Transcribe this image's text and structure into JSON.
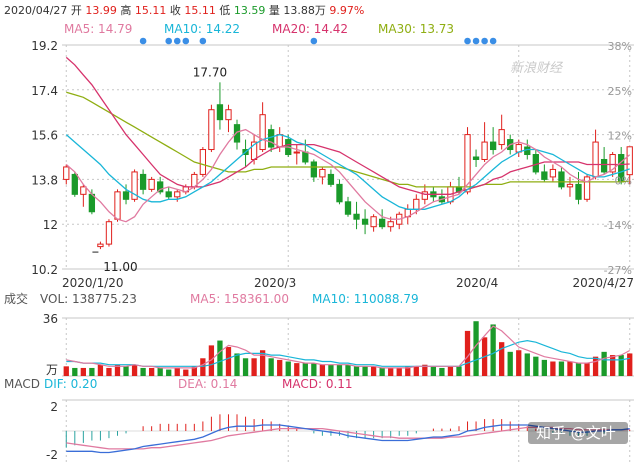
{
  "header": {
    "date": "2020/04/27",
    "items": [
      {
        "label": "开",
        "value": "13.99",
        "color": "#e0201c"
      },
      {
        "label": "高",
        "value": "15.11",
        "color": "#e0201c"
      },
      {
        "label": "收",
        "value": "15.11",
        "color": "#e0201c"
      },
      {
        "label": "低",
        "value": "13.59",
        "color": "#1a9a2a"
      },
      {
        "label": "量",
        "value": "13.88万",
        "color": "#333333"
      },
      {
        "label": "",
        "value": "9.97%",
        "color": "#e0201c"
      }
    ]
  },
  "legend": [
    {
      "text": "MA5: 14.79",
      "color": "#e07aa0"
    },
    {
      "text": "MA10: 14.22",
      "color": "#19b6d8"
    },
    {
      "text": "MA20: 14.42",
      "color": "#d6336c"
    },
    {
      "text": "MA30: 13.73",
      "color": "#8fae12"
    }
  ],
  "watermark": "新浪财经",
  "credit": "知乎 @文叶",
  "colors": {
    "up": "#e0201c",
    "down": "#1a9a2a",
    "grid": "#c7c7c7",
    "event": "#3a8ee6"
  },
  "chart_data": [
    {
      "type": "candlestick",
      "ylim": [
        10.2,
        19.2
      ],
      "yticks": [
        "19.2",
        "17.4",
        "15.6",
        "13.8",
        "12",
        "10.2"
      ],
      "pct_ticks": [
        "38%",
        "25%",
        "12%",
        "0%",
        "-14%",
        "-27%"
      ],
      "x_labels": [
        "2020/1/20",
        "2020/3",
        "2020/4",
        "2020/4/27"
      ],
      "annotations": [
        {
          "text": "17.70"
        },
        {
          "text": "11.00"
        }
      ],
      "ohlc": [
        [
          13.8,
          14.4,
          13.6,
          14.3
        ],
        [
          14.0,
          14.1,
          13.1,
          13.2
        ],
        [
          13.2,
          13.6,
          12.7,
          13.5
        ],
        [
          13.2,
          13.4,
          12.4,
          12.5
        ],
        [
          11.1,
          11.3,
          11.0,
          11.2
        ],
        [
          11.2,
          12.2,
          11.1,
          12.1
        ],
        [
          12.2,
          13.4,
          12.1,
          13.3
        ],
        [
          13.3,
          13.6,
          12.8,
          13.0
        ],
        [
          13.0,
          14.2,
          12.9,
          14.1
        ],
        [
          14.0,
          14.2,
          13.2,
          13.4
        ],
        [
          13.4,
          13.9,
          13.3,
          13.8
        ],
        [
          13.7,
          13.9,
          13.2,
          13.3
        ],
        [
          13.3,
          13.5,
          13.0,
          13.1
        ],
        [
          13.1,
          13.4,
          12.9,
          13.3
        ],
        [
          13.3,
          13.6,
          13.2,
          13.5
        ],
        [
          13.5,
          14.1,
          13.4,
          14.0
        ],
        [
          14.0,
          15.1,
          13.9,
          15.0
        ],
        [
          15.0,
          16.8,
          14.9,
          16.6
        ],
        [
          16.8,
          17.7,
          15.8,
          16.2
        ],
        [
          16.2,
          16.8,
          15.7,
          16.6
        ],
        [
          16.0,
          16.2,
          15.0,
          15.3
        ],
        [
          15.0,
          15.4,
          14.3,
          14.8
        ],
        [
          14.6,
          15.6,
          14.4,
          15.3
        ],
        [
          15.0,
          16.9,
          14.9,
          16.4
        ],
        [
          15.8,
          16.0,
          14.9,
          15.1
        ],
        [
          15.1,
          15.9,
          14.9,
          15.6
        ],
        [
          15.4,
          15.6,
          14.7,
          14.8
        ],
        [
          14.9,
          15.2,
          14.4,
          14.9
        ],
        [
          14.9,
          15.4,
          14.4,
          14.5
        ],
        [
          14.5,
          14.6,
          13.7,
          13.9
        ],
        [
          13.9,
          14.3,
          13.6,
          14.2
        ],
        [
          14.0,
          14.2,
          13.5,
          13.6
        ],
        [
          13.6,
          13.8,
          12.8,
          12.9
        ],
        [
          12.9,
          13.1,
          12.3,
          12.4
        ],
        [
          12.4,
          12.9,
          11.8,
          12.2
        ],
        [
          12.2,
          12.6,
          11.6,
          12.0
        ],
        [
          11.9,
          12.4,
          11.7,
          12.3
        ],
        [
          12.2,
          12.6,
          11.8,
          11.9
        ],
        [
          11.9,
          12.3,
          11.7,
          12.1
        ],
        [
          12.0,
          12.5,
          11.8,
          12.4
        ],
        [
          12.3,
          12.8,
          12.0,
          12.6
        ],
        [
          12.6,
          13.2,
          12.4,
          13.0
        ],
        [
          13.0,
          13.6,
          12.8,
          13.3
        ],
        [
          13.3,
          13.5,
          12.9,
          13.1
        ],
        [
          13.1,
          13.4,
          12.8,
          12.9
        ],
        [
          12.9,
          13.7,
          12.8,
          13.5
        ],
        [
          13.5,
          13.9,
          13.2,
          13.3
        ],
        [
          13.3,
          15.9,
          13.2,
          15.6
        ],
        [
          14.7,
          15.0,
          14.3,
          14.6
        ],
        [
          14.6,
          16.1,
          14.5,
          15.3
        ],
        [
          15.3,
          15.9,
          14.8,
          15.0
        ],
        [
          15.2,
          16.4,
          15.0,
          15.8
        ],
        [
          15.4,
          15.6,
          14.8,
          15.0
        ],
        [
          14.9,
          15.4,
          14.7,
          15.2
        ],
        [
          15.1,
          15.4,
          14.6,
          14.8
        ],
        [
          14.8,
          15.0,
          14.0,
          14.1
        ],
        [
          14.1,
          14.4,
          13.7,
          13.8
        ],
        [
          13.9,
          14.4,
          13.7,
          14.2
        ],
        [
          14.1,
          14.3,
          13.4,
          13.5
        ],
        [
          13.5,
          13.9,
          13.1,
          13.6
        ],
        [
          13.6,
          14.1,
          12.8,
          13.0
        ],
        [
          13.0,
          14.0,
          12.9,
          13.9
        ],
        [
          13.9,
          15.8,
          13.8,
          15.3
        ],
        [
          14.6,
          15.1,
          14.0,
          14.1
        ],
        [
          14.1,
          14.9,
          13.9,
          14.8
        ],
        [
          14.8,
          15.1,
          13.6,
          13.7
        ],
        [
          13.99,
          15.11,
          13.59,
          15.11
        ]
      ],
      "ma5": [
        14.4,
        14.1,
        13.6,
        13.2,
        12.9,
        12.5,
        12.2,
        12.1,
        12.3,
        12.8,
        13.1,
        13.4,
        13.5,
        13.4,
        13.3,
        13.5,
        13.8,
        14.2,
        14.8,
        15.3,
        15.7,
        15.8,
        15.6,
        15.4,
        15.3,
        15.1,
        15.1,
        15.0,
        14.9,
        14.8,
        14.6,
        14.4,
        14.1,
        13.7,
        13.3,
        12.9,
        12.6,
        12.3,
        12.2,
        12.2,
        12.3,
        12.5,
        12.7,
        12.9,
        13.0,
        13.1,
        13.2,
        13.6,
        14.0,
        14.4,
        14.7,
        14.9,
        15.2,
        15.3,
        15.2,
        15.0,
        14.7,
        14.5,
        14.3,
        14.0,
        13.8,
        13.7,
        13.9,
        14.0,
        14.2,
        14.5,
        14.79
      ],
      "ma10": [
        15.6,
        15.3,
        15.0,
        14.7,
        14.4,
        14.0,
        13.7,
        13.4,
        13.2,
        13.0,
        12.9,
        12.9,
        13.0,
        13.0,
        13.1,
        13.3,
        13.5,
        13.7,
        14.0,
        14.3,
        14.6,
        14.9,
        15.2,
        15.4,
        15.5,
        15.6,
        15.5,
        15.3,
        15.2,
        15.0,
        14.8,
        14.6,
        14.4,
        14.2,
        14.0,
        13.7,
        13.4,
        13.1,
        12.9,
        12.7,
        12.6,
        12.6,
        12.6,
        12.7,
        12.8,
        12.9,
        13.1,
        13.4,
        13.6,
        13.9,
        14.2,
        14.5,
        14.7,
        14.9,
        15.0,
        15.0,
        14.9,
        14.8,
        14.6,
        14.4,
        14.2,
        14.0,
        13.9,
        13.9,
        14.0,
        14.1,
        14.22
      ],
      "ma20": [
        18.7,
        18.4,
        18.0,
        17.6,
        17.1,
        16.6,
        16.1,
        15.6,
        15.2,
        14.8,
        14.4,
        14.0,
        13.8,
        13.6,
        13.5,
        13.5,
        13.5,
        13.6,
        13.7,
        13.9,
        14.1,
        14.3,
        14.6,
        14.8,
        15.0,
        15.1,
        15.2,
        15.2,
        15.2,
        15.2,
        15.1,
        15.0,
        14.9,
        14.7,
        14.5,
        14.3,
        14.1,
        13.9,
        13.7,
        13.5,
        13.4,
        13.3,
        13.2,
        13.2,
        13.2,
        13.2,
        13.3,
        13.4,
        13.5,
        13.6,
        13.8,
        13.9,
        14.1,
        14.2,
        14.3,
        14.4,
        14.5,
        14.5,
        14.5,
        14.5,
        14.5,
        14.4,
        14.4,
        14.4,
        14.4,
        14.4,
        14.42
      ],
      "ma30": [
        17.3,
        17.2,
        17.1,
        16.9,
        16.7,
        16.5,
        16.3,
        16.1,
        15.9,
        15.7,
        15.5,
        15.3,
        15.1,
        14.9,
        14.7,
        14.5,
        14.4,
        14.3,
        14.2,
        14.1,
        14.1,
        14.1,
        14.2,
        14.2,
        14.3,
        14.3,
        14.3,
        14.3,
        14.3,
        14.3,
        14.3,
        14.3,
        14.3,
        14.2,
        14.1,
        14.0,
        13.9,
        13.8,
        13.7,
        13.6,
        13.6,
        13.5,
        13.5,
        13.5,
        13.5,
        13.5,
        13.5,
        13.5,
        13.5,
        13.6,
        13.6,
        13.6,
        13.7,
        13.7,
        13.7,
        13.7,
        13.7,
        13.7,
        13.7,
        13.7,
        13.7,
        13.7,
        13.7,
        13.7,
        13.7,
        13.7,
        13.73
      ],
      "events": [
        9,
        12,
        13,
        14,
        16,
        29,
        47,
        48,
        49,
        50
      ]
    },
    {
      "type": "bar",
      "legend": [
        {
          "text": "成交",
          "color": "#555555"
        },
        {
          "text": "VOL: 138775.23",
          "color": "#555555"
        },
        {
          "text": "MA5: 158361.00",
          "color": "#e07aa0"
        },
        {
          "text": "MA10: 110088.79",
          "color": "#19b6d8"
        }
      ],
      "ytick_top": "36",
      "unit": "万",
      "ymax": 36,
      "volume": [
        6,
        5,
        5,
        5,
        7,
        5,
        7,
        6,
        7,
        5,
        5,
        5,
        4,
        5,
        4,
        6,
        11,
        19,
        22,
        18,
        14,
        11,
        11,
        16,
        11,
        10,
        9,
        8,
        8,
        8,
        7,
        7,
        7,
        7,
        6,
        6,
        6,
        5,
        5,
        5,
        6,
        6,
        7,
        6,
        5,
        6,
        6,
        28,
        34,
        24,
        32,
        21,
        15,
        16,
        14,
        12,
        10,
        9,
        9,
        9,
        8,
        8,
        12,
        15,
        13,
        13,
        14
      ],
      "vol_ma5": [
        10,
        9,
        8,
        8,
        7,
        6,
        6,
        6,
        7,
        6,
        6,
        5,
        5,
        5,
        5,
        5,
        7,
        10,
        15,
        19,
        18,
        16,
        13,
        13,
        12,
        11,
        10,
        9,
        8,
        8,
        7,
        7,
        7,
        7,
        6,
        6,
        6,
        5,
        5,
        5,
        5,
        6,
        6,
        6,
        6,
        6,
        6,
        12,
        19,
        25,
        31,
        28,
        23,
        18,
        16,
        14,
        12,
        11,
        10,
        9,
        8,
        8,
        9,
        11,
        12,
        13,
        15.8
      ],
      "vol_ma10": [
        9,
        9,
        8,
        8,
        8,
        7,
        7,
        7,
        7,
        6,
        6,
        6,
        6,
        6,
        6,
        6,
        6,
        7,
        9,
        11,
        13,
        14,
        14,
        14,
        13,
        13,
        12,
        11,
        10,
        10,
        9,
        9,
        8,
        8,
        7,
        7,
        7,
        6,
        6,
        6,
        6,
        6,
        6,
        6,
        6,
        6,
        6,
        8,
        10,
        12,
        14,
        17,
        19,
        21,
        22,
        21,
        19,
        17,
        15,
        14,
        12,
        11,
        11,
        10,
        10,
        10,
        11
      ]
    },
    {
      "type": "bar",
      "legend": [
        {
          "text": "MACD",
          "color": "#555555"
        },
        {
          "text": "DIF: 0.20",
          "color": "#19b6d8"
        },
        {
          "text": "DEA: 0.14",
          "color": "#e07aa0"
        },
        {
          "text": "MACD: 0.11",
          "color": "#d6336c"
        }
      ],
      "yticks": [
        "2",
        "-2"
      ],
      "ylim": [
        -2.6,
        2.6
      ],
      "dif": [
        -1.7,
        -1.7,
        -1.7,
        -1.7,
        -1.8,
        -1.8,
        -1.7,
        -1.6,
        -1.5,
        -1.3,
        -1.2,
        -1.1,
        -1.0,
        -0.9,
        -0.8,
        -0.7,
        -0.5,
        -0.2,
        0.1,
        0.3,
        0.4,
        0.4,
        0.4,
        0.5,
        0.5,
        0.5,
        0.4,
        0.3,
        0.2,
        0.1,
        0.0,
        -0.1,
        -0.2,
        -0.4,
        -0.5,
        -0.6,
        -0.7,
        -0.8,
        -0.8,
        -0.8,
        -0.8,
        -0.7,
        -0.6,
        -0.5,
        -0.5,
        -0.4,
        -0.3,
        0.0,
        0.1,
        0.3,
        0.4,
        0.5,
        0.5,
        0.5,
        0.5,
        0.4,
        0.3,
        0.2,
        0.1,
        0.0,
        -0.1,
        -0.1,
        0.0,
        0.0,
        0.1,
        0.1,
        0.2
      ],
      "dea": [
        -1.0,
        -1.1,
        -1.2,
        -1.3,
        -1.4,
        -1.5,
        -1.5,
        -1.5,
        -1.5,
        -1.5,
        -1.4,
        -1.4,
        -1.3,
        -1.2,
        -1.1,
        -1.0,
        -0.9,
        -0.8,
        -0.6,
        -0.4,
        -0.3,
        -0.2,
        -0.1,
        0.0,
        0.1,
        0.2,
        0.2,
        0.2,
        0.2,
        0.2,
        0.2,
        0.1,
        0.0,
        -0.1,
        -0.2,
        -0.3,
        -0.4,
        -0.5,
        -0.5,
        -0.6,
        -0.6,
        -0.6,
        -0.6,
        -0.6,
        -0.6,
        -0.5,
        -0.5,
        -0.4,
        -0.3,
        -0.2,
        -0.1,
        0.0,
        0.1,
        0.2,
        0.3,
        0.3,
        0.3,
        0.3,
        0.2,
        0.2,
        0.1,
        0.1,
        0.1,
        0.1,
        0.1,
        0.1,
        0.14
      ],
      "macd": [
        -1.4,
        -1.2,
        -1.0,
        -0.8,
        -0.8,
        -0.6,
        -0.4,
        -0.2,
        0.0,
        0.4,
        0.4,
        0.6,
        0.6,
        0.6,
        0.6,
        0.6,
        0.8,
        1.2,
        1.4,
        1.4,
        1.4,
        1.2,
        1.0,
        1.0,
        0.8,
        0.6,
        0.4,
        0.2,
        0.0,
        -0.2,
        -0.4,
        -0.4,
        -0.4,
        -0.6,
        -0.6,
        -0.6,
        -0.6,
        -0.6,
        -0.6,
        -0.4,
        -0.4,
        -0.2,
        0.0,
        0.2,
        0.2,
        0.2,
        0.4,
        0.8,
        0.8,
        1.0,
        1.0,
        1.0,
        0.8,
        0.6,
        0.4,
        0.2,
        0.0,
        -0.2,
        -0.2,
        -0.4,
        -0.4,
        -0.4,
        -0.2,
        -0.2,
        0.0,
        0.0,
        0.11
      ]
    }
  ]
}
